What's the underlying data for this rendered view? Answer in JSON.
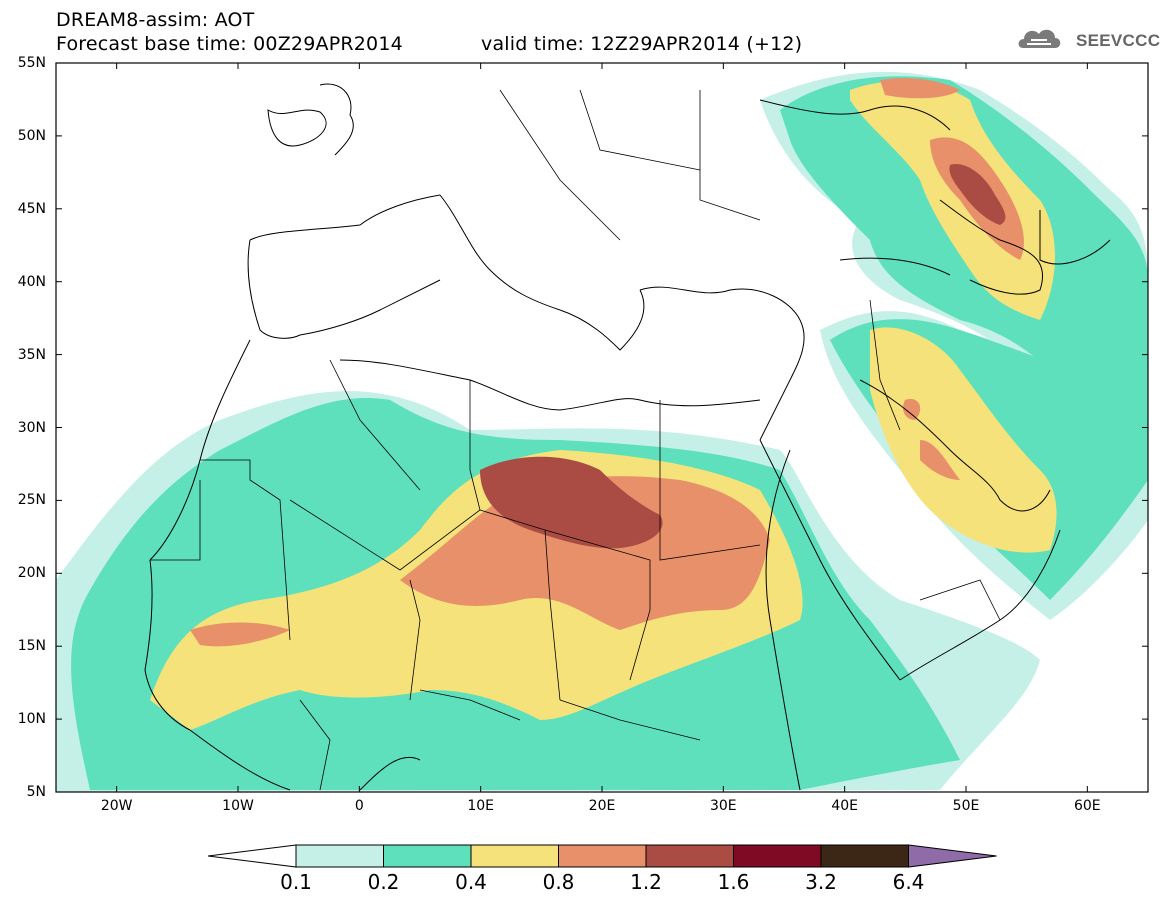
{
  "title": {
    "line1": "DREAM8-assim: AOT",
    "base_time": "Forecast base time: 00Z29APR2014",
    "valid_time": "valid time: 12Z29APR2014 (+12)"
  },
  "logo": {
    "text": "SEEVCCC",
    "icon": "cloud-icon"
  },
  "map": {
    "projection": "lat-lon",
    "lon_range": [
      -25,
      65
    ],
    "lat_range": [
      5,
      55
    ],
    "lat_labels": [
      "55N",
      "50N",
      "45N",
      "40N",
      "35N",
      "30N",
      "25N",
      "20N",
      "15N",
      "10N",
      "5N"
    ],
    "lon_labels": [
      "20W",
      "10W",
      "0",
      "10E",
      "20E",
      "30E",
      "40E",
      "50E",
      "60E"
    ],
    "field": "Aerosol Optical Thickness"
  },
  "colorbar": {
    "levels": [
      "0.1",
      "0.2",
      "0.4",
      "0.8",
      "1.2",
      "1.6",
      "3.2",
      "6.4"
    ],
    "colors": [
      "#ffffff",
      "#c4f0e8",
      "#5ee0bc",
      "#f6e27a",
      "#e8906a",
      "#ab4c44",
      "#7e0a24",
      "#3c2616",
      "#8f6ca8"
    ]
  }
}
